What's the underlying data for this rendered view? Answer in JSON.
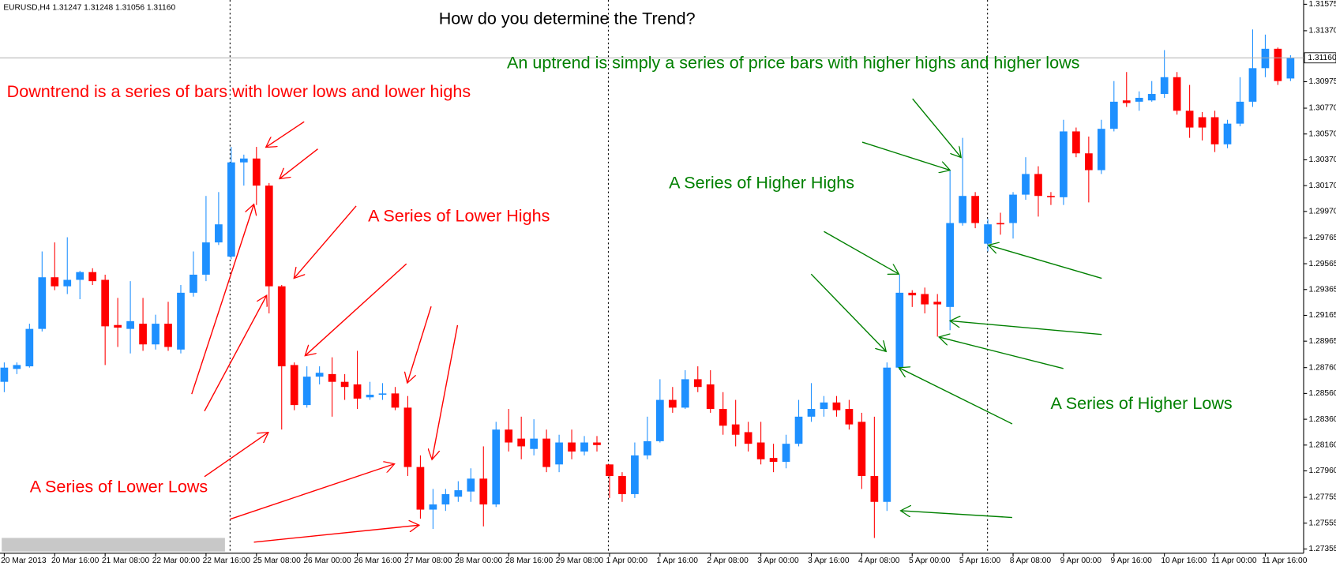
{
  "chart_data": {
    "type": "candlestick",
    "title": "How do you determine the Trend?",
    "info": "EURUSD,H4  1.31247 1.31248 1.31056 1.31160",
    "categories": [
      "20 Mar 2013",
      null,
      null,
      null,
      "20 Mar 16:00",
      null,
      null,
      null,
      "21 Mar 08:00",
      null,
      null,
      null,
      "22 Mar 00:00",
      null,
      null,
      null,
      "22 Mar 16:00",
      null,
      null,
      null,
      "25 Mar 08:00",
      null,
      null,
      null,
      "26 Mar 00:00",
      null,
      null,
      null,
      "26 Mar 16:00",
      null,
      null,
      null,
      "27 Mar 08:00",
      null,
      null,
      null,
      "28 Mar 00:00",
      null,
      null,
      null,
      "28 Mar 16:00",
      null,
      null,
      null,
      "29 Mar 08:00",
      null,
      null,
      null,
      "1 Apr 00:00",
      null,
      null,
      null,
      "1 Apr 16:00",
      null,
      null,
      null,
      "2 Apr 08:00",
      null,
      null,
      null,
      "3 Apr 00:00",
      null,
      null,
      null,
      "3 Apr 16:00",
      null,
      null,
      null,
      "4 Apr 08:00",
      null,
      null,
      null,
      "5 Apr 00:00",
      null,
      null,
      null,
      "5 Apr 16:00",
      null,
      null,
      null,
      "8 Apr 08:00",
      null,
      null,
      null,
      "9 Apr 00:00",
      null,
      null,
      null,
      "9 Apr 16:00",
      null,
      null,
      null,
      "10 Apr 16:00",
      null,
      null,
      null,
      "11 Apr 00:00",
      null,
      null,
      null,
      "11 Apr 16:00",
      null,
      null
    ],
    "open": [
      1.2865,
      1.2875,
      1.2877,
      1.2906,
      1.2946,
      1.2939,
      1.2944,
      1.295,
      1.2944,
      1.2909,
      1.2906,
      1.291,
      1.2894,
      1.291,
      1.289,
      1.2934,
      1.2948,
      1.2973,
      1.2962,
      1.3035,
      1.3038,
      1.3017,
      1.2939,
      1.2878,
      1.2847,
      1.2869,
      1.2871,
      1.2865,
      1.2863,
      1.2853,
      1.2855,
      1.2856,
      1.2845,
      1.2799,
      1.2766,
      1.277,
      1.2776,
      1.278,
      1.279,
      1.277,
      1.2828,
      1.2821,
      1.2813,
      1.2821,
      1.2801,
      1.2818,
      1.2811,
      1.2818,
      1.2801,
      1.2792,
      1.2778,
      1.2808,
      1.2819,
      1.2851,
      1.2845,
      1.2867,
      1.2863,
      1.2844,
      1.2832,
      1.2826,
      1.2818,
      1.2806,
      1.2803,
      1.2817,
      1.2838,
      1.2844,
      1.2849,
      1.2844,
      1.2834,
      1.2792,
      1.2772,
      1.2876,
      1.2934,
      1.2933,
      1.2927,
      1.2923,
      1.2988,
      1.3009,
      1.2972,
      1.2988,
      1.2988,
      1.301,
      1.3026,
      1.3009,
      1.3008,
      1.3059,
      1.3042,
      1.3029,
      1.3061,
      1.3083,
      1.3082,
      1.3083,
      1.3088,
      1.3101,
      1.3075,
      1.307,
      1.307,
      1.3049,
      1.3065,
      1.3082,
      1.3108,
      1.3123,
      1.31
    ],
    "high": [
      1.288,
      1.288,
      1.291,
      1.2966,
      1.2973,
      1.2977,
      1.2951,
      1.2953,
      1.2948,
      1.293,
      1.2943,
      1.293,
      1.2917,
      1.2927,
      1.294,
      1.2966,
      1.3009,
      1.3012,
      1.3047,
      1.3041,
      1.3047,
      1.3019,
      1.294,
      1.288,
      1.2877,
      1.2877,
      1.2884,
      1.2871,
      1.2889,
      1.2865,
      1.2864,
      1.2861,
      1.2854,
      1.2808,
      1.2782,
      1.2782,
      1.2788,
      1.2798,
      1.2815,
      1.2834,
      1.2844,
      1.2838,
      1.2836,
      1.2828,
      1.2824,
      1.2828,
      1.2823,
      1.2823,
      1.2801,
      1.2795,
      1.2818,
      1.2838,
      1.2867,
      1.2861,
      1.2874,
      1.2877,
      1.2874,
      1.2857,
      1.2851,
      1.2834,
      1.2834,
      1.2817,
      1.2824,
      1.2851,
      1.2864,
      1.2854,
      1.2854,
      1.2851,
      1.2841,
      1.2838,
      1.288,
      1.2948,
      1.2936,
      1.2938,
      1.2933,
      1.3029,
      1.3054,
      1.3012,
      1.2991,
      1.2996,
      1.3012,
      1.3039,
      1.3032,
      1.3012,
      1.3068,
      1.3062,
      1.3055,
      1.3068,
      1.3098,
      1.3105,
      1.309,
      1.3098,
      1.3122,
      1.3105,
      1.3095,
      1.3074,
      1.3075,
      1.3068,
      1.3101,
      1.3138,
      1.3134,
      1.3124,
      1.3118
    ],
    "low": [
      1.2857,
      1.2871,
      1.2876,
      1.2904,
      1.2936,
      1.2933,
      1.2929,
      1.294,
      1.2878,
      1.2892,
      1.2887,
      1.2889,
      1.289,
      1.2889,
      1.2887,
      1.2931,
      1.2943,
      1.2971,
      1.296,
      1.3017,
      1.3002,
      1.2918,
      1.2828,
      1.2843,
      1.2845,
      1.2863,
      1.2838,
      1.2851,
      1.2844,
      1.2851,
      1.2851,
      1.2843,
      1.2792,
      1.2759,
      1.2751,
      1.2765,
      1.2772,
      1.2772,
      1.2753,
      1.2768,
      1.2811,
      1.2805,
      1.2808,
      1.2795,
      1.2795,
      1.2805,
      1.2808,
      1.2811,
      1.2775,
      1.2772,
      1.2775,
      1.2805,
      1.2818,
      1.2841,
      1.2844,
      1.2857,
      1.2841,
      1.2824,
      1.2815,
      1.2811,
      1.2801,
      1.2795,
      1.2798,
      1.2815,
      1.2834,
      1.2838,
      1.2838,
      1.2828,
      1.2782,
      1.2744,
      1.2765,
      1.2874,
      1.2923,
      1.2918,
      1.29,
      1.2905,
      1.2986,
      1.2984,
      1.2966,
      1.2979,
      1.2976,
      1.3006,
      1.2993,
      1.3002,
      1.3002,
      1.3039,
      1.3004,
      1.3026,
      1.3059,
      1.3078,
      1.3075,
      1.3082,
      1.3085,
      1.3072,
      1.3054,
      1.3052,
      1.3043,
      1.3046,
      1.3063,
      1.3078,
      1.3101,
      1.3095,
      1.3098
    ],
    "close": [
      1.2876,
      1.2878,
      1.2906,
      1.2946,
      1.2939,
      1.2944,
      1.295,
      1.2943,
      1.2908,
      1.2907,
      1.2912,
      1.2894,
      1.291,
      1.2892,
      1.2934,
      1.2948,
      1.2973,
      1.2987,
      1.3035,
      1.3038,
      1.3017,
      1.2939,
      1.2877,
      1.2847,
      1.2869,
      1.2872,
      1.2865,
      1.2861,
      1.2852,
      1.2855,
      1.2856,
      1.2845,
      1.2799,
      1.2766,
      1.277,
      1.2778,
      1.2781,
      1.279,
      1.277,
      1.2828,
      1.2818,
      1.2815,
      1.2821,
      1.2799,
      1.2818,
      1.2811,
      1.2818,
      1.2816,
      1.2792,
      1.2778,
      1.2808,
      1.2819,
      1.2851,
      1.2845,
      1.2867,
      1.2861,
      1.2844,
      1.2831,
      1.2824,
      1.2817,
      1.2805,
      1.2803,
      1.2817,
      1.2838,
      1.2844,
      1.2849,
      1.2843,
      1.2832,
      1.2792,
      1.2772,
      1.2876,
      1.2934,
      1.2932,
      1.2925,
      1.2925,
      1.2988,
      1.3009,
      1.2988,
      1.2987,
      1.2987,
      1.301,
      1.3026,
      1.3009,
      1.3008,
      1.3059,
      1.3042,
      1.3029,
      1.3061,
      1.3082,
      1.3081,
      1.3085,
      1.3088,
      1.3101,
      1.3075,
      1.3062,
      1.3062,
      1.3049,
      1.3065,
      1.3082,
      1.3108,
      1.3123,
      1.3098,
      1.3116
    ],
    "up_color": "#1e90ff",
    "down_color": "#ff0000",
    "ylim": [
      1.27322,
      1.31608
    ],
    "yticks": [
      1.31575,
      {
        "value": 1.3137,
        "label": "1.31370"
      },
      1.30975,
      {
        "value": 1.3077,
        "label": "1.30770"
      },
      {
        "value": 1.3057,
        "label": "1.30570"
      },
      {
        "value": 1.3037,
        "label": "1.30370"
      },
      {
        "value": 1.3017,
        "label": "1.30170"
      },
      {
        "value": 1.2997,
        "label": "1.29970"
      },
      1.29765,
      1.29565,
      1.29365,
      1.29165,
      1.28965,
      {
        "value": 1.2876,
        "label": "1.28760"
      },
      {
        "value": 1.2856,
        "label": "1.28560"
      },
      {
        "value": 1.2836,
        "label": "1.28360"
      },
      {
        "value": 1.2816,
        "label": "1.28160"
      },
      {
        "value": 1.2796,
        "label": "1.27960"
      },
      1.27755,
      1.27555,
      1.27355
    ],
    "current_price": {
      "value": 1.3116,
      "label": "1.31160"
    },
    "grid": false,
    "annotations": [
      {
        "text": "Downtrend is a series of bars with lower lows and lower highs",
        "color": "#ff0000"
      },
      {
        "text": "A Series of Lower Highs",
        "color": "#ff0000"
      },
      {
        "text": "A Series of Lower Lows",
        "color": "#ff0000"
      },
      {
        "text": "An uptrend is simply a series of price bars with higher highs  and higher lows",
        "color": "#008000"
      },
      {
        "text": "A Series of Higher Highs",
        "color": "#008000"
      },
      {
        "text": "A Series of Higher Lows",
        "color": "#008000"
      }
    ]
  }
}
